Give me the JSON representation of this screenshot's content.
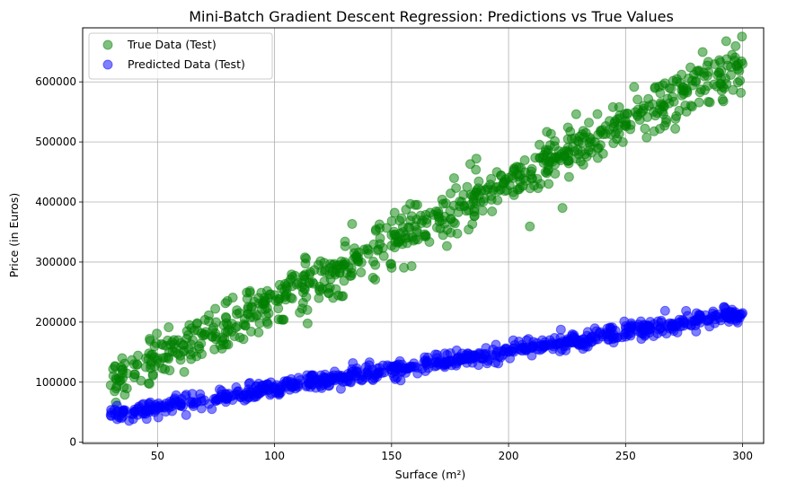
{
  "chart_data": {
    "type": "scatter",
    "title": "Mini-Batch Gradient Descent Regression: Predictions vs True Values",
    "xlabel": "Surface (m²)",
    "ylabel": "Price (in Euros)",
    "xlim": [
      18,
      309
    ],
    "ylim": [
      -2000,
      690000
    ],
    "xticks": [
      50,
      100,
      150,
      200,
      250,
      300
    ],
    "yticks": [
      0,
      100000,
      200000,
      300000,
      400000,
      500000,
      600000
    ],
    "xtick_labels": [
      "50",
      "100",
      "150",
      "200",
      "250",
      "300"
    ],
    "ytick_labels": [
      "0",
      "100000",
      "200000",
      "300000",
      "400000",
      "500000",
      "600000"
    ],
    "grid": true,
    "legend_position": "top-left",
    "series": [
      {
        "name": "True Data (Test)",
        "color": "#008000",
        "opacity": 0.5,
        "trend": {
          "x_start": 30,
          "x_end": 300,
          "y_at_start": 100000,
          "y_at_end": 630000,
          "spread": 22000
        },
        "x": [
          30,
          35,
          40,
          45,
          50,
          55,
          60,
          65,
          70,
          75,
          80,
          85,
          90,
          95,
          100,
          105,
          110,
          115,
          120,
          125,
          130,
          135,
          140,
          145,
          150,
          155,
          160,
          165,
          170,
          175,
          180,
          185,
          190,
          195,
          200,
          205,
          210,
          215,
          220,
          225,
          230,
          235,
          240,
          245,
          250,
          255,
          260,
          265,
          270,
          275,
          280,
          285,
          290,
          295,
          300
        ],
        "y": [
          95000,
          120000,
          130000,
          125000,
          140000,
          150000,
          165000,
          170000,
          180000,
          200000,
          195000,
          215000,
          225000,
          230000,
          245000,
          260000,
          265000,
          280000,
          285000,
          295000,
          300000,
          310000,
          320000,
          330000,
          345000,
          350000,
          360000,
          365000,
          380000,
          385000,
          400000,
          405000,
          420000,
          425000,
          440000,
          445000,
          455000,
          465000,
          475000,
          485000,
          500000,
          505000,
          520000,
          525000,
          535000,
          545000,
          560000,
          565000,
          575000,
          585000,
          600000,
          610000,
          615000,
          625000,
          630000
        ]
      },
      {
        "name": "Predicted Data (Test)",
        "color": "#0000ff",
        "opacity": 0.5,
        "trend": {
          "x_start": 30,
          "x_end": 300,
          "y_at_start": 45000,
          "y_at_end": 215000,
          "spread": 7000
        },
        "x": [
          30,
          35,
          40,
          45,
          50,
          55,
          60,
          65,
          70,
          75,
          80,
          85,
          90,
          95,
          100,
          105,
          110,
          115,
          120,
          125,
          130,
          135,
          140,
          145,
          150,
          155,
          160,
          165,
          170,
          175,
          180,
          185,
          190,
          195,
          200,
          205,
          210,
          215,
          220,
          225,
          230,
          235,
          240,
          245,
          250,
          255,
          260,
          265,
          270,
          275,
          280,
          285,
          290,
          295,
          300
        ],
        "y": [
          45000,
          48000,
          51000,
          54000,
          58000,
          61000,
          64000,
          67000,
          70000,
          73000,
          76000,
          79000,
          82000,
          85000,
          89000,
          92000,
          95000,
          98000,
          101000,
          104000,
          107000,
          110000,
          113000,
          117000,
          120000,
          123000,
          126000,
          129000,
          132000,
          135000,
          138000,
          141000,
          145000,
          148000,
          151000,
          154000,
          157000,
          160000,
          163000,
          166000,
          170000,
          173000,
          176000,
          179000,
          182000,
          185000,
          188000,
          191000,
          195000,
          198000,
          201000,
          204000,
          207000,
          211000,
          215000
        ]
      }
    ]
  }
}
